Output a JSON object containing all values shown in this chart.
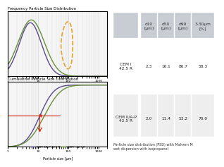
{
  "title_top": "Frequency Particle Size Distribution",
  "title_bottom": "Cumulative Particle Size Distribution",
  "colors": {
    "cem1": "#6a8f3c",
    "cem2": "#5b4a8a"
  },
  "legend": {
    "cem2_label": "CEM II/A-P 42.5 R",
    "cem1_label": "CEM I 42.5 R"
  },
  "table": {
    "headers": [
      "",
      "d10\n[μm]",
      "d50\n[μm]",
      "d99\n[μm]",
      "3-30μm\n[%]"
    ],
    "rows": [
      [
        "CEM I\n42.5 R",
        "2.3",
        "16.1",
        "86.7",
        "58.3"
      ],
      [
        "CEM II/A-P\n42.5 R",
        "2.0",
        "11.4",
        "53.2",
        "70.0"
      ]
    ]
  },
  "note": "Particle size distribution (PSD) with Malvern M\nwet dispersion with isopropanol",
  "circle_color": "#e8a020",
  "arrow_color": "#cc2200",
  "grid_color": "#cccccc",
  "bg_color": "#ffffff",
  "plot_bg": "#f5f5f5"
}
